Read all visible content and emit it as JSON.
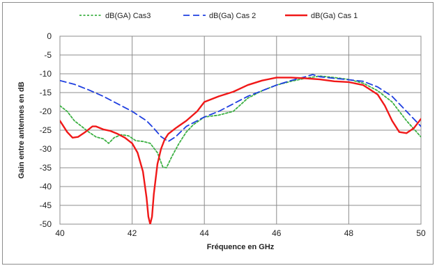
{
  "chart_data": {
    "type": "line",
    "title": "",
    "xlabel": "Fréquence en GHz",
    "ylabel": "Gain entre antennes en dB",
    "xlim": [
      40,
      50
    ],
    "ylim": [
      -50,
      0
    ],
    "xticks": [
      40,
      42,
      44,
      46,
      48,
      50
    ],
    "yticks": [
      0,
      -5,
      -10,
      -15,
      -20,
      -25,
      -30,
      -35,
      -40,
      -45,
      -50
    ],
    "grid": true,
    "legend_position": "top",
    "series": [
      {
        "name": "dB(GA) Cas3",
        "color": "#3cb043",
        "dash": "dotted",
        "x": [
          40.0,
          40.2,
          40.4,
          40.6,
          40.8,
          41.0,
          41.2,
          41.35,
          41.5,
          41.7,
          41.9,
          42.1,
          42.3,
          42.5,
          42.7,
          42.85,
          42.95,
          43.1,
          43.3,
          43.5,
          43.7,
          44.0,
          44.4,
          44.8,
          45.2,
          45.6,
          46.0,
          46.4,
          46.8,
          47.2,
          47.6,
          48.0,
          48.4,
          48.8,
          49.2,
          49.6,
          50.0
        ],
        "y": [
          -18.5,
          -20.0,
          -22.5,
          -24.0,
          -25.5,
          -26.8,
          -27.3,
          -28.5,
          -27.0,
          -26.2,
          -26.5,
          -27.8,
          -28.0,
          -28.5,
          -31.0,
          -34.8,
          -35.0,
          -32.0,
          -28.5,
          -25.5,
          -23.5,
          -21.5,
          -21.0,
          -20.0,
          -16.5,
          -14.5,
          -13.0,
          -12.0,
          -11.2,
          -10.6,
          -11.0,
          -11.5,
          -12.5,
          -14.5,
          -17.5,
          -22.5,
          -26.8
        ]
      },
      {
        "name": "dB(Ga) Cas 2",
        "color": "#1f3fe0",
        "dash": "dashed",
        "x": [
          40.0,
          40.4,
          40.8,
          41.2,
          41.6,
          42.0,
          42.4,
          42.6,
          42.8,
          43.0,
          43.2,
          43.5,
          43.8,
          44.0,
          44.4,
          44.8,
          45.2,
          45.6,
          46.0,
          46.4,
          46.8,
          47.0,
          47.2,
          47.6,
          48.0,
          48.4,
          48.8,
          49.2,
          49.6,
          50.0
        ],
        "y": [
          -11.8,
          -12.8,
          -14.3,
          -16.0,
          -18.0,
          -20.0,
          -22.5,
          -24.5,
          -26.7,
          -28.0,
          -26.8,
          -24.0,
          -22.5,
          -21.5,
          -20.0,
          -18.0,
          -16.0,
          -14.5,
          -13.0,
          -11.8,
          -10.8,
          -10.2,
          -10.8,
          -11.2,
          -11.6,
          -12.0,
          -13.5,
          -16.0,
          -20.0,
          -24.0
        ]
      },
      {
        "name": "dB(Ga) Cas 1",
        "color": "#f01818",
        "dash": "solid",
        "x": [
          40.0,
          40.2,
          40.35,
          40.5,
          40.7,
          40.9,
          41.0,
          41.2,
          41.4,
          41.6,
          41.8,
          42.0,
          42.15,
          42.3,
          42.4,
          42.45,
          42.5,
          42.55,
          42.6,
          42.7,
          42.8,
          42.9,
          43.0,
          43.2,
          43.5,
          43.8,
          44.0,
          44.4,
          44.8,
          45.2,
          45.6,
          46.0,
          46.4,
          46.8,
          47.2,
          47.6,
          48.0,
          48.4,
          48.8,
          49.0,
          49.2,
          49.4,
          49.6,
          49.8,
          50.0
        ],
        "y": [
          -22.5,
          -25.5,
          -27.0,
          -26.8,
          -25.5,
          -24.0,
          -24.0,
          -24.8,
          -25.2,
          -26.0,
          -27.0,
          -28.5,
          -31.0,
          -36.0,
          -43.0,
          -48.0,
          -50.0,
          -48.0,
          -42.0,
          -34.0,
          -30.0,
          -27.5,
          -26.0,
          -24.5,
          -22.5,
          -20.0,
          -17.5,
          -16.0,
          -14.8,
          -13.0,
          -11.8,
          -11.0,
          -11.0,
          -11.2,
          -11.5,
          -12.0,
          -12.2,
          -13.0,
          -15.5,
          -18.5,
          -22.5,
          -25.5,
          -25.8,
          -24.5,
          -22.0
        ]
      }
    ]
  }
}
